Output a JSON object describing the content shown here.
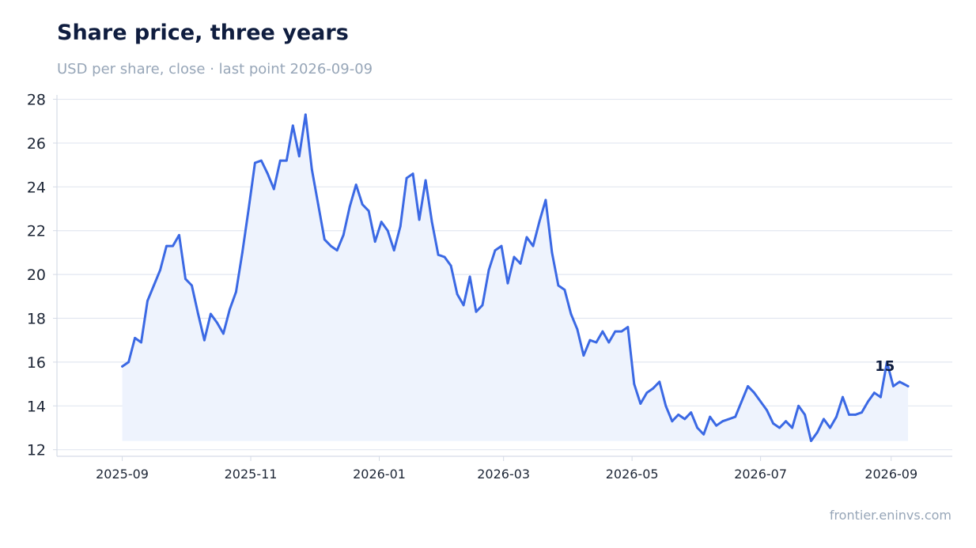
{
  "page": {
    "title": "Share price, three years",
    "subtitle": "USD per share, close · last point 2026-09-09",
    "source": "frontier.eninvs.com"
  },
  "colors": {
    "line": "#3b69e4",
    "area": "#eef3fd",
    "grid": "#e2e7f0",
    "axis": "#d5dbe6",
    "title": "#0f1d3f",
    "muted": "#97a6b8",
    "tick": "#1c2535",
    "annotation": "#0f1d3f"
  },
  "chart_data": {
    "type": "line",
    "title": "Share price, three years",
    "subtitle": "USD per share, close · last point 2026-09-09",
    "xlabel": "",
    "ylabel": "",
    "grid": true,
    "legend": "none",
    "xlim": [
      "2025-08-01",
      "2026-09-30"
    ],
    "ylim": [
      11.7,
      28.2
    ],
    "x_ticks": [
      "2025-09",
      "2025-11",
      "2026-01",
      "2026-03",
      "2026-05",
      "2026-07",
      "2026-09"
    ],
    "y_ticks": [
      12,
      14,
      16,
      18,
      20,
      22,
      24,
      26,
      28
    ],
    "area_baseline": 12.4,
    "annotations": [
      {
        "text": "15",
        "x": "2026-08-29",
        "y": 15.6
      }
    ],
    "series": [
      {
        "x": [
          "2025-09-01",
          "2025-09-04",
          "2025-09-07",
          "2025-09-10",
          "2025-09-13",
          "2025-09-16",
          "2025-09-19",
          "2025-09-22",
          "2025-09-25",
          "2025-09-28",
          "2025-10-01",
          "2025-10-04",
          "2025-10-07",
          "2025-10-10",
          "2025-10-13",
          "2025-10-16",
          "2025-10-19",
          "2025-10-22",
          "2025-10-25",
          "2025-10-28",
          "2025-10-31",
          "2025-11-03",
          "2025-11-06",
          "2025-11-09",
          "2025-11-12",
          "2025-11-15",
          "2025-11-18",
          "2025-11-21",
          "2025-11-24",
          "2025-11-27",
          "2025-11-30",
          "2025-12-03",
          "2025-12-06",
          "2025-12-09",
          "2025-12-12",
          "2025-12-15",
          "2025-12-18",
          "2025-12-21",
          "2025-12-24",
          "2025-12-27",
          "2025-12-30",
          "2026-01-02",
          "2026-01-05",
          "2026-01-08",
          "2026-01-11",
          "2026-01-14",
          "2026-01-17",
          "2026-01-20",
          "2026-01-23",
          "2026-01-26",
          "2026-01-29",
          "2026-02-01",
          "2026-02-04",
          "2026-02-07",
          "2026-02-10",
          "2026-02-13",
          "2026-02-16",
          "2026-02-19",
          "2026-02-22",
          "2026-02-25",
          "2026-02-28",
          "2026-03-03",
          "2026-03-06",
          "2026-03-09",
          "2026-03-12",
          "2026-03-15",
          "2026-03-18",
          "2026-03-21",
          "2026-03-24",
          "2026-03-27",
          "2026-03-30",
          "2026-04-02",
          "2026-04-05",
          "2026-04-08",
          "2026-04-11",
          "2026-04-14",
          "2026-04-17",
          "2026-04-20",
          "2026-04-23",
          "2026-04-26",
          "2026-04-29",
          "2026-05-02",
          "2026-05-05",
          "2026-05-08",
          "2026-05-11",
          "2026-05-14",
          "2026-05-17",
          "2026-05-20",
          "2026-05-23",
          "2026-05-26",
          "2026-05-29",
          "2026-06-01",
          "2026-06-04",
          "2026-06-07",
          "2026-06-10",
          "2026-06-13",
          "2026-06-16",
          "2026-06-19",
          "2026-06-22",
          "2026-06-25",
          "2026-06-28",
          "2026-07-01",
          "2026-07-04",
          "2026-07-07",
          "2026-07-10",
          "2026-07-13",
          "2026-07-16",
          "2026-07-19",
          "2026-07-22",
          "2026-07-25",
          "2026-07-28",
          "2026-07-31",
          "2026-08-03",
          "2026-08-06",
          "2026-08-09",
          "2026-08-12",
          "2026-08-15",
          "2026-08-18",
          "2026-08-21",
          "2026-08-24",
          "2026-08-27",
          "2026-08-30",
          "2026-09-02",
          "2026-09-05",
          "2026-09-09"
        ],
        "values": [
          15.8,
          16.0,
          17.1,
          16.9,
          18.8,
          19.5,
          20.2,
          21.3,
          21.3,
          21.8,
          19.8,
          19.5,
          18.2,
          17.0,
          18.2,
          17.8,
          17.3,
          18.4,
          19.2,
          21.0,
          23.0,
          25.1,
          25.2,
          24.6,
          23.9,
          25.2,
          25.2,
          26.8,
          25.4,
          27.3,
          24.8,
          23.2,
          21.6,
          21.3,
          21.1,
          21.8,
          23.1,
          24.1,
          23.2,
          22.9,
          21.5,
          22.4,
          22.0,
          21.1,
          22.2,
          24.4,
          24.6,
          22.5,
          24.3,
          22.4,
          20.9,
          20.8,
          20.4,
          19.1,
          18.6,
          19.9,
          18.3,
          18.6,
          20.2,
          21.1,
          21.3,
          19.6,
          20.8,
          20.5,
          21.7,
          21.3,
          22.4,
          23.4,
          21.0,
          19.5,
          19.3,
          18.2,
          17.5,
          16.3,
          17.0,
          16.9,
          17.4,
          16.9,
          17.4,
          17.4,
          17.6,
          15.0,
          14.1,
          14.6,
          14.8,
          15.1,
          14.0,
          13.3,
          13.6,
          13.4,
          13.7,
          13.0,
          12.7,
          13.5,
          13.1,
          13.3,
          13.4,
          13.5,
          14.2,
          14.9,
          14.6,
          14.2,
          13.8,
          13.2,
          13.0,
          13.3,
          13.0,
          14.0,
          13.6,
          12.4,
          12.8,
          13.4,
          13.0,
          13.5,
          14.4,
          13.6,
          13.6,
          13.7,
          14.2,
          14.6,
          14.4,
          16.0,
          14.9,
          15.1,
          14.9
        ]
      }
    ]
  }
}
